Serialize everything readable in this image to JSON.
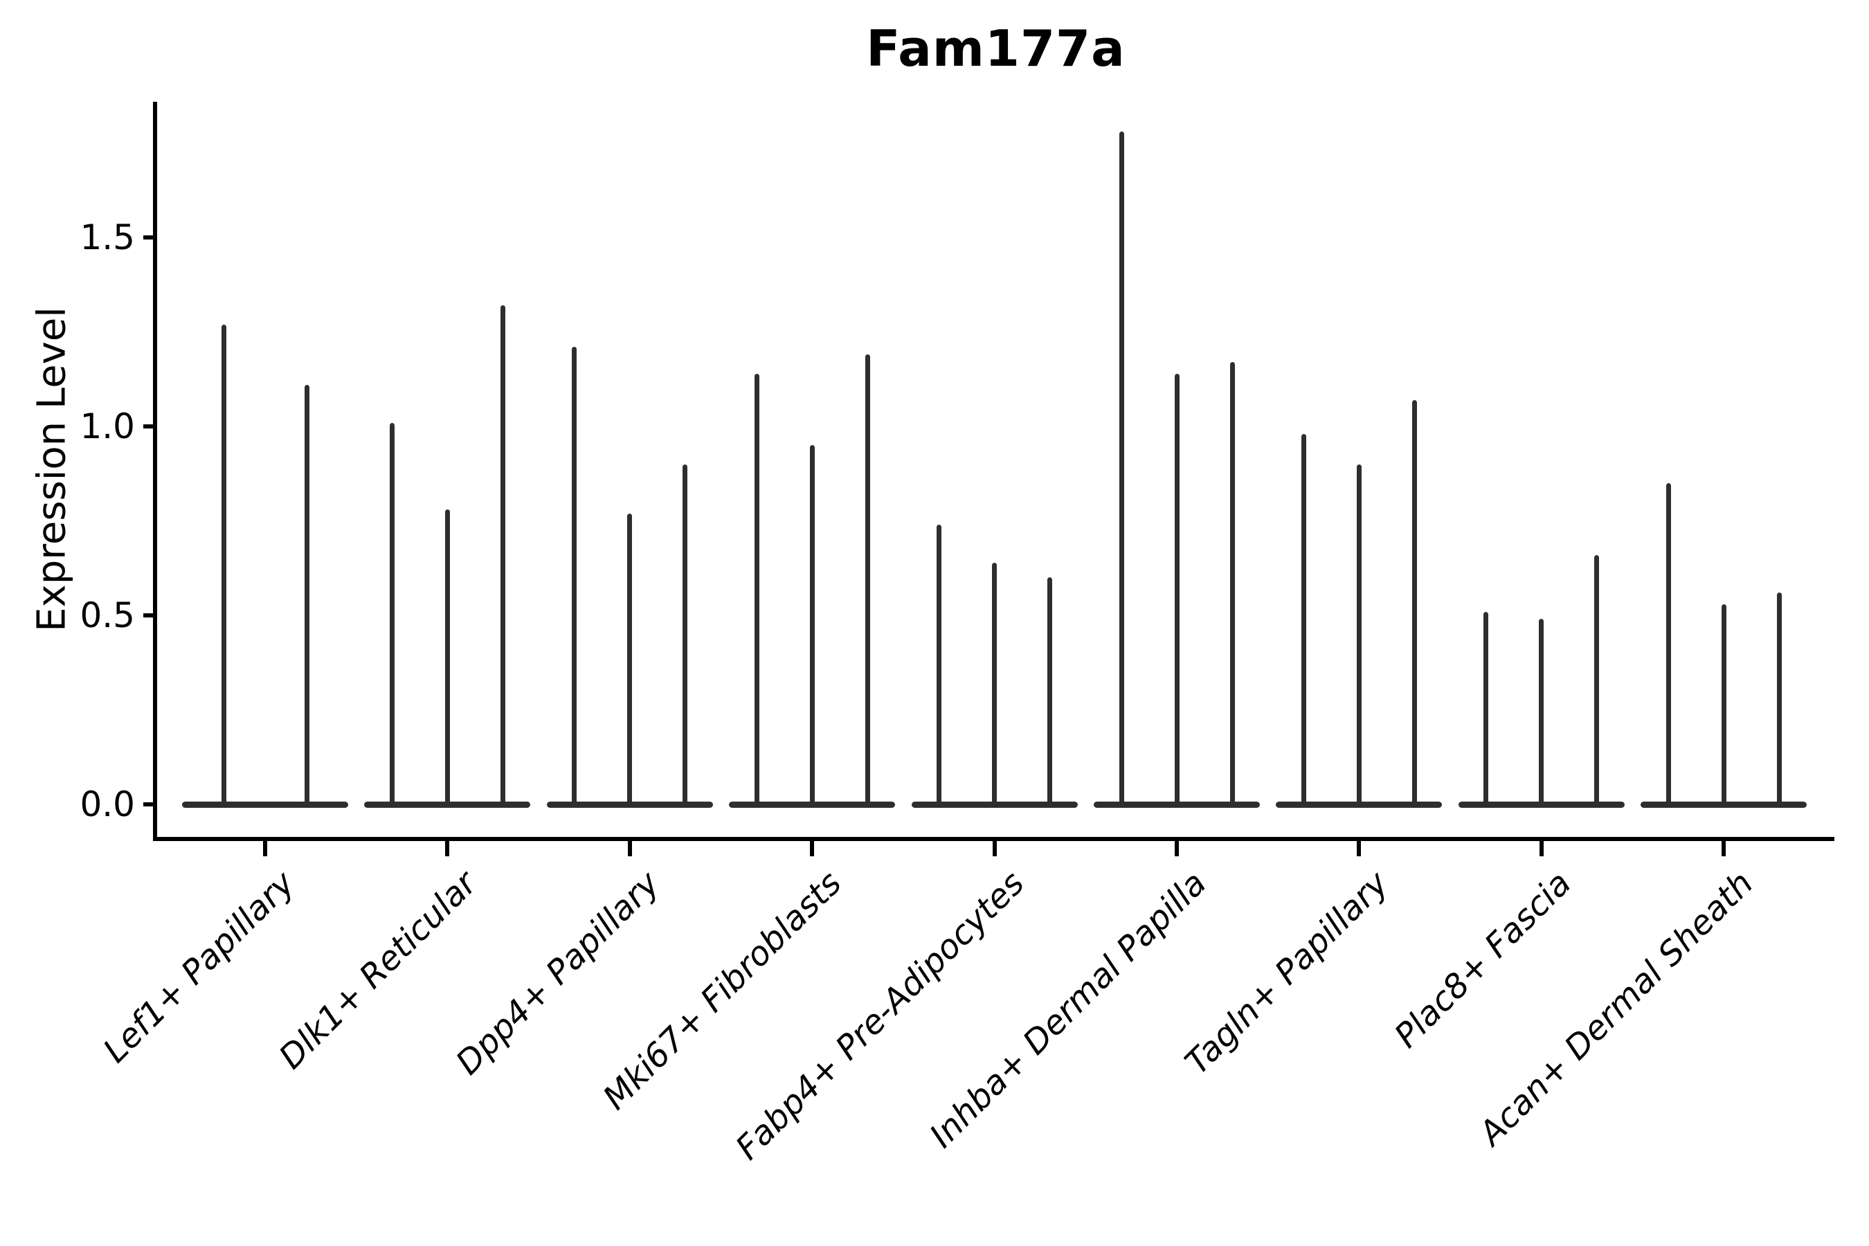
{
  "title": "Fam177a",
  "axes": {
    "ylabel": "Expression Level",
    "ytick_labels": [
      "0.0",
      "0.5",
      "1.0",
      "1.5"
    ]
  },
  "chart_data": {
    "type": "violin",
    "title": "Fam177a",
    "xlabel": "",
    "ylabel": "Expression Level",
    "ylim": [
      -0.09,
      1.86
    ],
    "yticks": [
      0.0,
      0.5,
      1.0,
      1.5
    ],
    "grid": false,
    "legend": "none",
    "violin_color": "#2e2e2e",
    "axis_color": "#000000",
    "background_color": "#ffffff",
    "categories": [
      "Lef1+ Papillary",
      "Dlk1+ Reticular",
      "Dpp4+ Papillary",
      "Mki67+ Fibroblasts",
      "Fabp4+ Pre-Adipocytes",
      "Inhba+ Dermal Papilla",
      "Tagln+ Papillary",
      "Plac8+ Fascia",
      "Acan+ Dermal Sheath"
    ],
    "description": "Very thin violins (spikes) rising from a flat density mass at expression 0; one spike per split within each cell-type group",
    "violin_maxima": [
      [
        1.27,
        1.11
      ],
      [
        1.01,
        0.78,
        1.32
      ],
      [
        1.21,
        0.77,
        0.9
      ],
      [
        1.14,
        0.95,
        1.19
      ],
      [
        0.74,
        0.64,
        0.6
      ],
      [
        1.78,
        1.14,
        1.17
      ],
      [
        0.98,
        0.9,
        1.07
      ],
      [
        0.51,
        0.49,
        0.66
      ],
      [
        0.85,
        0.53,
        0.56
      ]
    ],
    "baseline_value": 0.0
  }
}
